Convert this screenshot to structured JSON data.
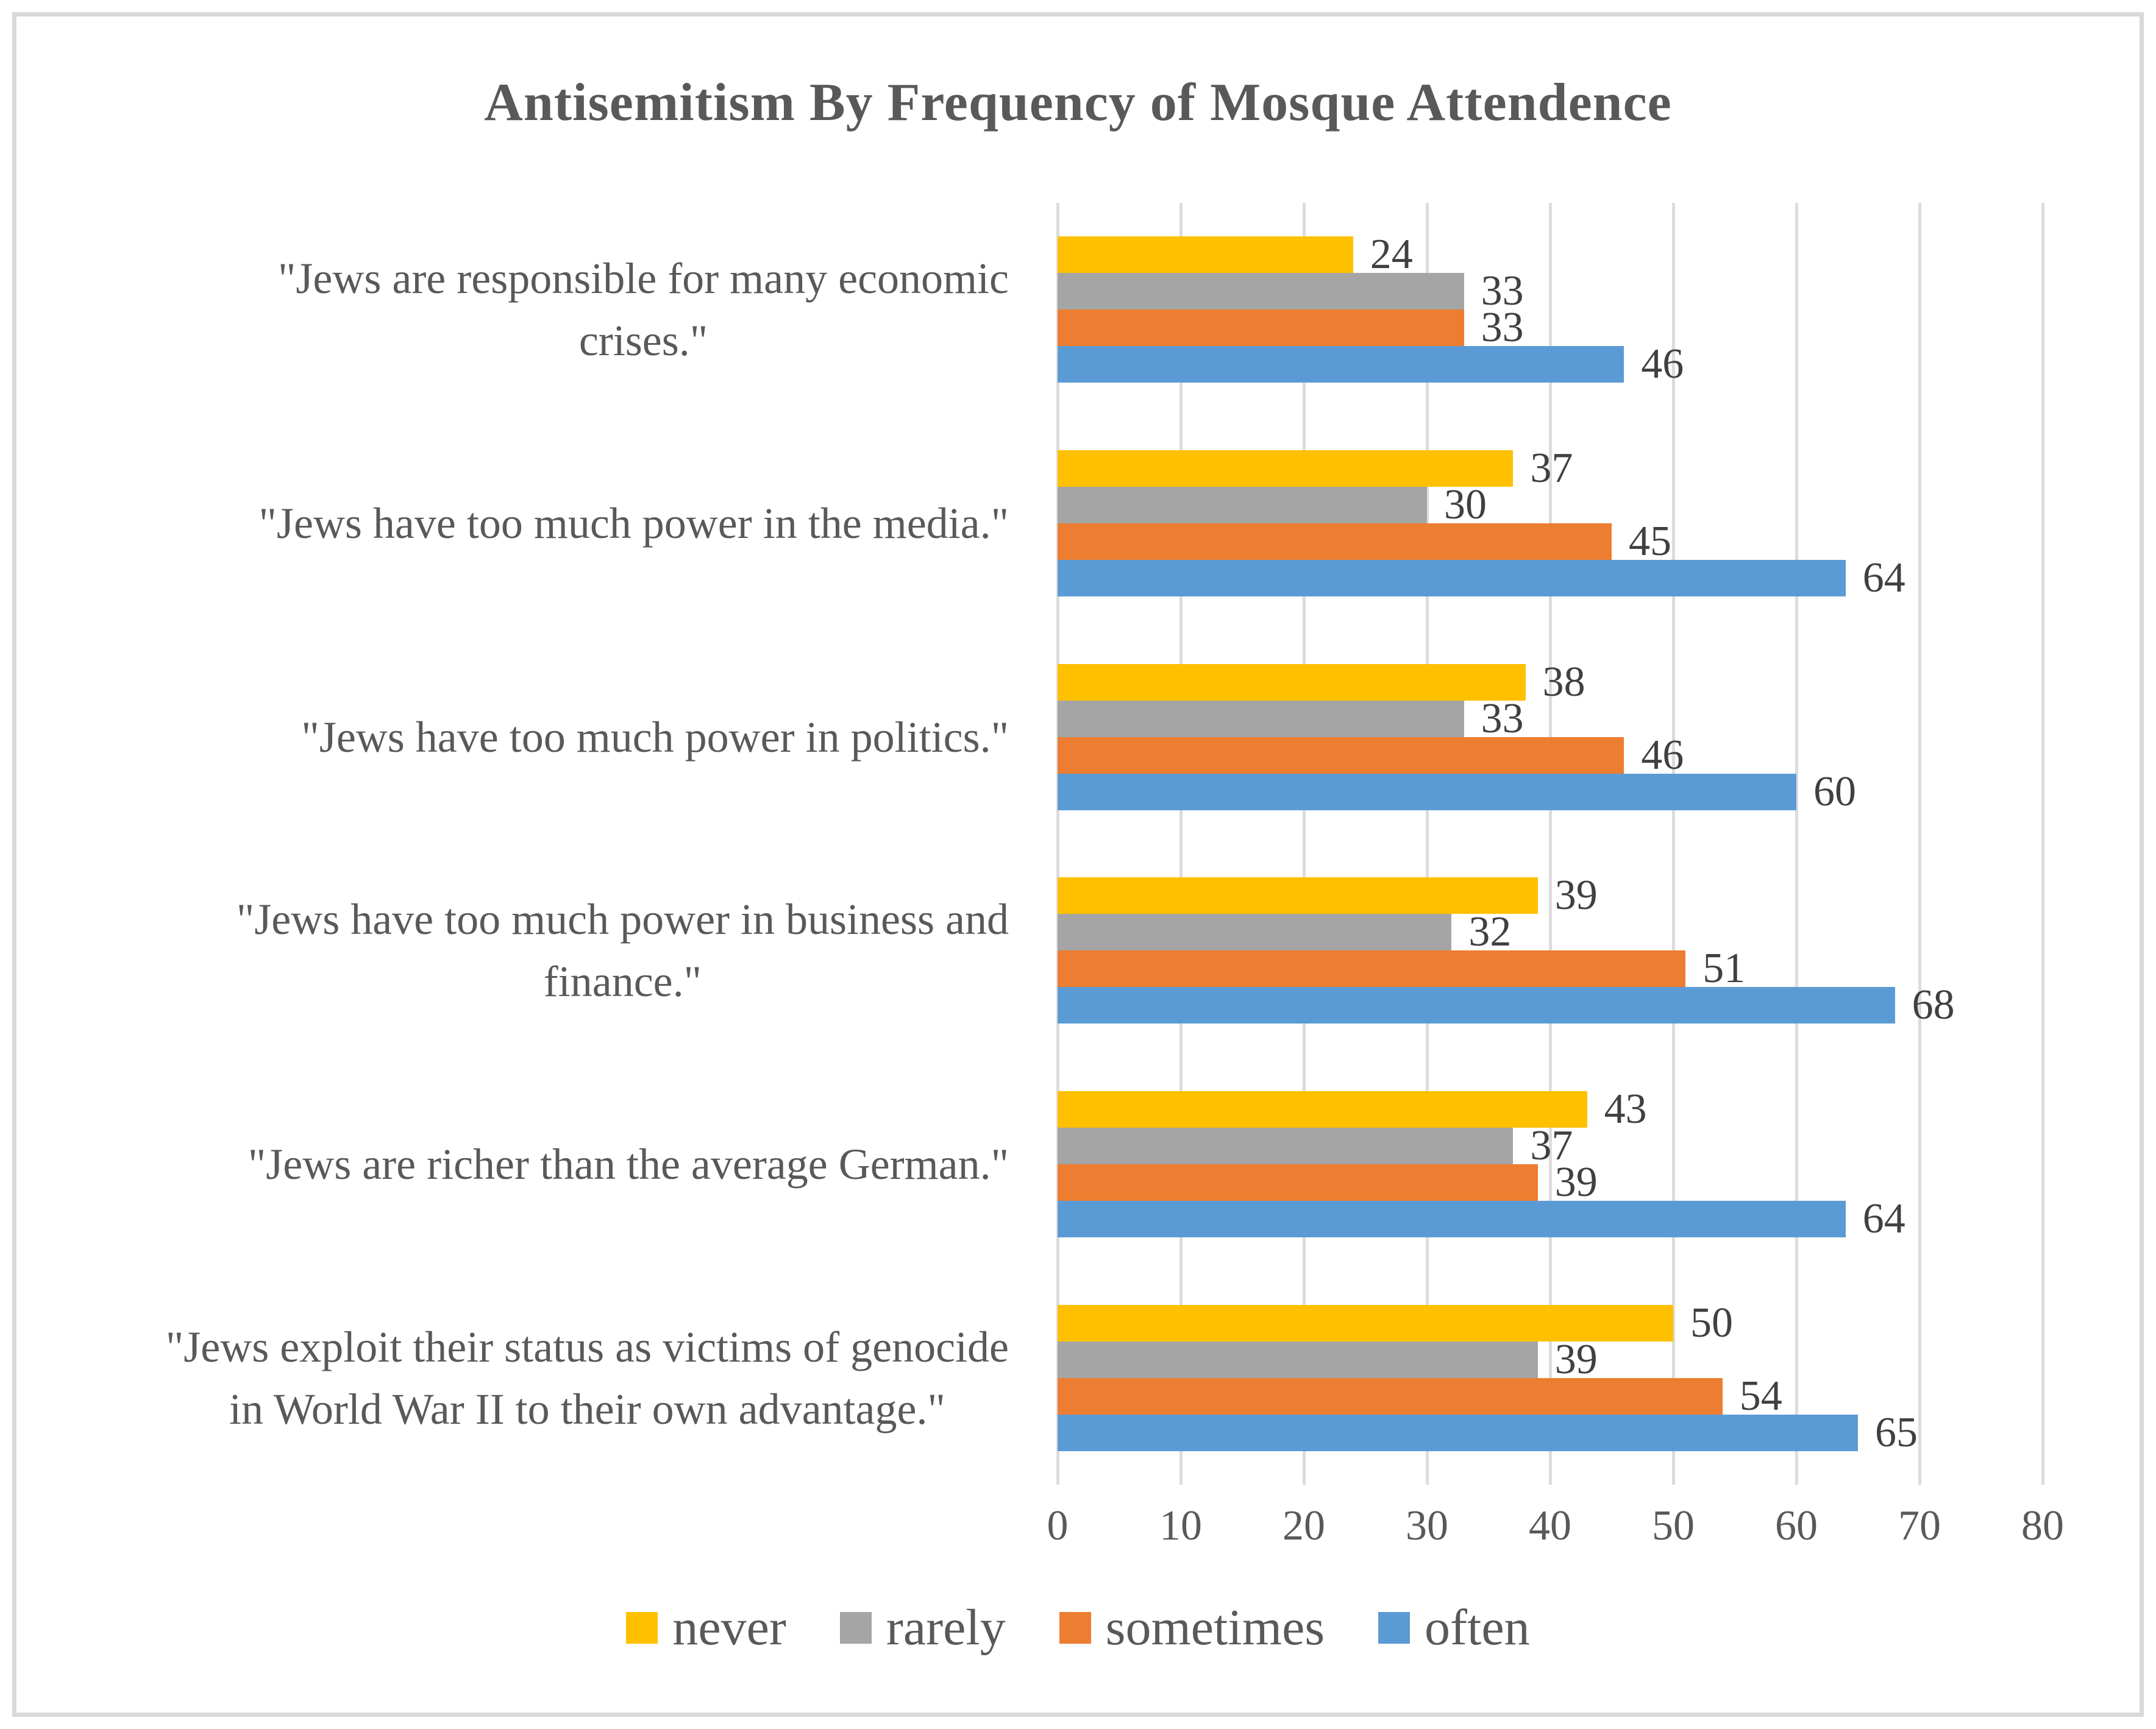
{
  "title": "Antisemitism By Frequency of Mosque Attendence",
  "chart_data": {
    "type": "bar",
    "orientation": "horizontal",
    "title": "Antisemitism By Frequency of Mosque Attendence",
    "categories": [
      "\"Jews are responsible for many economic\ncrises.\"",
      "\"Jews have too much power in the media.\"",
      "\"Jews have too much power in politics.\"",
      "\"Jews have too much power in business and\nfinance.\"",
      "\"Jews are richer than the average German.\"",
      "\"Jews exploit their status as victims of genocide\nin World War II to their own advantage.\""
    ],
    "series": [
      {
        "name": "never",
        "color": "#FFC000",
        "values": [
          24,
          37,
          38,
          39,
          43,
          50
        ]
      },
      {
        "name": "rarely",
        "color": "#A5A5A5",
        "values": [
          33,
          30,
          33,
          32,
          37,
          39
        ]
      },
      {
        "name": "sometimes",
        "color": "#ED7D31",
        "values": [
          33,
          45,
          46,
          51,
          39,
          54
        ]
      },
      {
        "name": "often",
        "color": "#5B9BD5",
        "values": [
          46,
          64,
          60,
          68,
          64,
          65
        ]
      }
    ],
    "series_order_top_to_bottom": [
      "never",
      "rarely",
      "sometimes",
      "often"
    ],
    "xlim": [
      0,
      80
    ],
    "x_ticks": [
      0,
      10,
      20,
      30,
      40,
      50,
      60,
      70,
      80
    ],
    "grid": true,
    "legend_position": "bottom",
    "colors": {
      "gridline": "#DCDCDC",
      "figure_border": "#D9D9D9",
      "title_text": "#595959",
      "axis_text": "#595959",
      "category_text": "#595959",
      "value_label_text": "#404040"
    }
  }
}
